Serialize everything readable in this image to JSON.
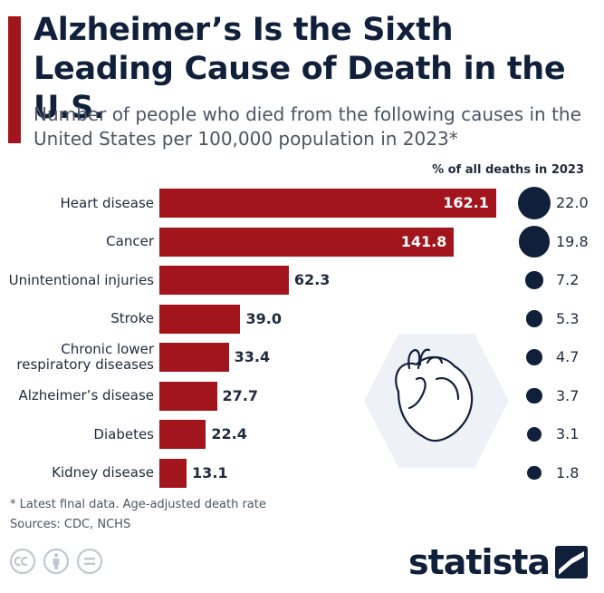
{
  "title": "Alzheimer’s Is the Sixth Leading Cause of Death in the U.S.",
  "subtitle": "Number of people who died from the following causes in the United States per 100,000 population in 2023*",
  "pct_header": "% of all deaths in 2023",
  "colors": {
    "bar": "#a3151c",
    "dot": "#10203b",
    "accent": "#a3151c"
  },
  "chart_data": {
    "type": "bar",
    "orientation": "horizontal",
    "categories": [
      "Heart disease",
      "Cancer",
      "Unintentional injuries",
      "Stroke",
      "Chronic lower respiratory diseases",
      "Alzheimer’s disease",
      "Diabetes",
      "Kidney disease"
    ],
    "values": [
      162.1,
      141.8,
      62.3,
      39.0,
      33.4,
      27.7,
      22.4,
      13.1
    ],
    "value_labels": [
      "162.1",
      "141.8",
      "62.3",
      "39.0",
      "33.4",
      "27.7",
      "22.4",
      "13.1"
    ],
    "percent_of_all_deaths": [
      22.0,
      19.8,
      7.2,
      5.3,
      4.7,
      3.7,
      3.1,
      1.8
    ],
    "percent_labels": [
      "22.0",
      "19.8",
      "7.2",
      "5.3",
      "4.7",
      "3.7",
      "3.1",
      "1.8"
    ],
    "xlim": [
      0,
      170
    ],
    "grid": false,
    "legend": "none"
  },
  "footnote": {
    "note": "* Latest final data. Age-adjusted death rate",
    "sources": "Sources: CDC, NCHS"
  },
  "brand": {
    "name": "statista"
  },
  "icons": {
    "license": [
      "cc-icon",
      "attribution-icon",
      "no-derivatives-icon"
    ],
    "illustration": "heart-icon",
    "logo": "statista-logo-icon"
  }
}
